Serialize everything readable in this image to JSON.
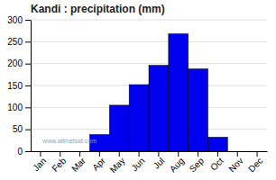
{
  "chart_data": {
    "type": "bar",
    "title": "Kandi : precipitation (mm)",
    "categories": [
      "Jan",
      "Feb",
      "Mar",
      "Apr",
      "May",
      "Jun",
      "Jul",
      "Aug",
      "Sep",
      "Oct",
      "Nov",
      "Dec"
    ],
    "values": [
      0,
      0,
      0,
      38,
      105,
      152,
      196,
      268,
      188,
      32,
      0,
      0
    ],
    "color": "#0000ee",
    "ylim": [
      0,
      300
    ],
    "yticks": [
      0,
      50,
      100,
      150,
      200,
      250,
      300
    ],
    "grid": true,
    "annotations": [
      "www.allmetsat.com"
    ]
  }
}
